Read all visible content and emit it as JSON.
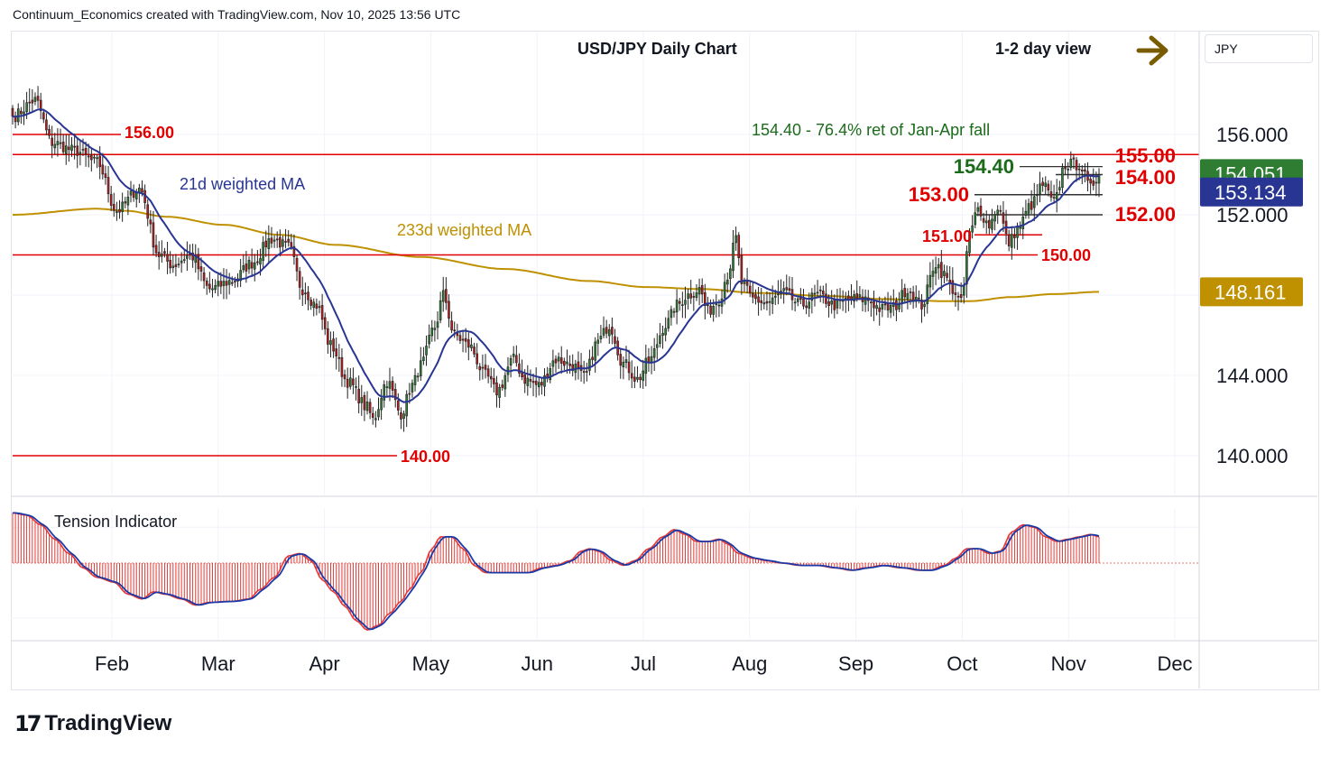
{
  "header": {
    "attribution": "Continuum_Economics created with TradingView.com, Nov 10, 2025 13:56 UTC"
  },
  "symbol_box": {
    "label": "JPY"
  },
  "branding": {
    "logo_mark": "17",
    "name": "TradingView"
  },
  "arrow_icon": "right-arrow-icon",
  "colors": {
    "up": "#2e7d32",
    "down": "#b71c1c",
    "ma21": "#283593",
    "ma233": "#bf9000",
    "level_line": "#e00000",
    "level_text": "#e00000",
    "fib_text": "#1b6b1b",
    "ma21_badge": "#283593",
    "ma233_badge": "#bf9000",
    "last_badge": "#2e7d32",
    "tension_fill": "#e53935",
    "tension_line": "#1a3aa8"
  },
  "chart_data": [
    {
      "type": "candlestick",
      "title": "USD/JPY Daily Chart",
      "subtitle": "1-2 day view",
      "y_axis": {
        "ticks": [
          156.0,
          144.0,
          140.0
        ],
        "tick_labels": [
          "156.000",
          "144.000",
          "140.000"
        ],
        "ylim": [
          138.0,
          157.9
        ]
      },
      "x_axis": {
        "tick_labels": [
          "Feb",
          "Mar",
          "Apr",
          "May",
          "Jun",
          "Jul",
          "Aug",
          "Sep",
          "Oct",
          "Nov",
          "Dec"
        ]
      },
      "price_badges": [
        {
          "label": "154.051",
          "kind": "last_price"
        },
        {
          "label": "153.134",
          "kind": "ma21"
        },
        {
          "label": "148.161",
          "kind": "ma233"
        }
      ],
      "levels": [
        {
          "value": 156.0,
          "label": "156.00"
        },
        {
          "value": 155.0,
          "label": "155.00"
        },
        {
          "value": 154.0,
          "label": "154.00"
        },
        {
          "value": 153.0,
          "label": "153.00"
        },
        {
          "value": 152.0,
          "label": "152.00"
        },
        {
          "value": 151.0,
          "label": "151.00"
        },
        {
          "value": 150.0,
          "label": "150.00"
        },
        {
          "value": 140.0,
          "label": "140.00"
        }
      ],
      "fib_level": {
        "value": 154.4,
        "label": "154.40",
        "note": "154.40 - 76.4% ret of Jan-Apr fall"
      },
      "series_labels": {
        "ma21": "21d weighted MA",
        "ma233": "233d weighted MA"
      },
      "close_anchors": [
        [
          0,
          156.9
        ],
        [
          8,
          157.7
        ],
        [
          14,
          155.6
        ],
        [
          22,
          155.2
        ],
        [
          30,
          154.6
        ],
        [
          37,
          152.2
        ],
        [
          45,
          153.3
        ],
        [
          52,
          150.0
        ],
        [
          57,
          149.5
        ],
        [
          63,
          150.0
        ],
        [
          70,
          148.3
        ],
        [
          78,
          148.7
        ],
        [
          85,
          149.6
        ],
        [
          92,
          150.8
        ],
        [
          98,
          150.4
        ],
        [
          103,
          148.3
        ],
        [
          108,
          147.5
        ],
        [
          113,
          145.5
        ],
        [
          119,
          143.7
        ],
        [
          126,
          142.4
        ],
        [
          128,
          141.8
        ],
        [
          133,
          143.7
        ],
        [
          138,
          142.1
        ],
        [
          142,
          143.5
        ],
        [
          145,
          144.5
        ],
        [
          150,
          146.4
        ],
        [
          153,
          148.0
        ],
        [
          157,
          146.0
        ],
        [
          162,
          145.5
        ],
        [
          168,
          144.0
        ],
        [
          172,
          143.2
        ],
        [
          178,
          144.8
        ],
        [
          182,
          143.8
        ],
        [
          187,
          143.5
        ],
        [
          193,
          144.8
        ],
        [
          199,
          144.5
        ],
        [
          203,
          143.9
        ],
        [
          208,
          145.7
        ],
        [
          212,
          146.5
        ],
        [
          217,
          144.6
        ],
        [
          222,
          143.8
        ],
        [
          226,
          144.7
        ],
        [
          232,
          146.5
        ],
        [
          236,
          147.5
        ],
        [
          240,
          148.0
        ],
        [
          244,
          148.3
        ],
        [
          247,
          147.2
        ],
        [
          251,
          147.8
        ],
        [
          254,
          149.0
        ],
        [
          257,
          150.8
        ],
        [
          259,
          148.6
        ],
        [
          263,
          147.8
        ],
        [
          268,
          147.6
        ],
        [
          274,
          148.1
        ],
        [
          280,
          147.5
        ],
        [
          286,
          148.0
        ],
        [
          292,
          147.5
        ],
        [
          298,
          147.8
        ],
        [
          303,
          147.8
        ],
        [
          309,
          147.3
        ],
        [
          313,
          147.4
        ],
        [
          318,
          148.3
        ],
        [
          323,
          147.5
        ],
        [
          328,
          149.6
        ],
        [
          331,
          149.0
        ],
        [
          334,
          148.3
        ],
        [
          337,
          147.6
        ],
        [
          340,
          151.0
        ],
        [
          343,
          152.3
        ],
        [
          347,
          151.5
        ],
        [
          350,
          152.4
        ],
        [
          354,
          150.6
        ],
        [
          357,
          151.3
        ],
        [
          362,
          152.5
        ],
        [
          366,
          153.5
        ],
        [
          370,
          152.6
        ],
        [
          374,
          154.5
        ],
        [
          379,
          154.5
        ],
        [
          383,
          153.3
        ],
        [
          384,
          153.6
        ],
        [
          386,
          154.0
        ]
      ],
      "ma233_anchors": [
        [
          0,
          152.0
        ],
        [
          30,
          152.3
        ],
        [
          40,
          152.2
        ],
        [
          55,
          151.9
        ],
        [
          75,
          151.5
        ],
        [
          95,
          151.0
        ],
        [
          115,
          150.5
        ],
        [
          145,
          149.9
        ],
        [
          175,
          149.3
        ],
        [
          205,
          148.7
        ],
        [
          225,
          148.4
        ],
        [
          245,
          148.3
        ],
        [
          265,
          148.1
        ],
        [
          290,
          147.95
        ],
        [
          310,
          147.8
        ],
        [
          330,
          147.7
        ],
        [
          340,
          147.7
        ],
        [
          355,
          147.9
        ],
        [
          370,
          148.05
        ],
        [
          386,
          148.16
        ]
      ],
      "x_range": [
        0,
        386
      ]
    },
    {
      "type": "histogram_line",
      "title": "Tension Indicator",
      "anchors": [
        [
          0,
          1.05
        ],
        [
          5,
          1.0
        ],
        [
          10,
          0.8
        ],
        [
          15,
          0.5
        ],
        [
          20,
          0.2
        ],
        [
          25,
          -0.1
        ],
        [
          30,
          -0.3
        ],
        [
          36,
          -0.4
        ],
        [
          41,
          -0.65
        ],
        [
          46,
          -0.75
        ],
        [
          50,
          -0.6
        ],
        [
          54,
          -0.65
        ],
        [
          60,
          -0.75
        ],
        [
          65,
          -0.88
        ],
        [
          70,
          -0.82
        ],
        [
          78,
          -0.8
        ],
        [
          84,
          -0.75
        ],
        [
          88,
          -0.55
        ],
        [
          93,
          -0.3
        ],
        [
          98,
          0.15
        ],
        [
          102,
          0.2
        ],
        [
          106,
          0.05
        ],
        [
          110,
          -0.35
        ],
        [
          114,
          -0.6
        ],
        [
          118,
          -0.9
        ],
        [
          122,
          -1.2
        ],
        [
          126,
          -1.4
        ],
        [
          130,
          -1.3
        ],
        [
          134,
          -1.05
        ],
        [
          138,
          -0.8
        ],
        [
          141,
          -0.55
        ],
        [
          145,
          -0.2
        ],
        [
          149,
          0.3
        ],
        [
          152,
          0.55
        ],
        [
          156,
          0.55
        ],
        [
          160,
          0.3
        ],
        [
          164,
          -0.05
        ],
        [
          168,
          -0.2
        ],
        [
          173,
          -0.2
        ],
        [
          178,
          -0.2
        ],
        [
          183,
          -0.2
        ],
        [
          188,
          -0.1
        ],
        [
          193,
          -0.05
        ],
        [
          198,
          0.05
        ],
        [
          202,
          0.25
        ],
        [
          205,
          0.3
        ],
        [
          208,
          0.25
        ],
        [
          213,
          0.05
        ],
        [
          217,
          -0.05
        ],
        [
          221,
          0.05
        ],
        [
          226,
          0.3
        ],
        [
          231,
          0.55
        ],
        [
          235,
          0.7
        ],
        [
          239,
          0.6
        ],
        [
          243,
          0.45
        ],
        [
          247,
          0.45
        ],
        [
          251,
          0.5
        ],
        [
          254,
          0.4
        ],
        [
          258,
          0.2
        ],
        [
          263,
          0.1
        ],
        [
          268,
          0.05
        ],
        [
          273,
          0.0
        ],
        [
          280,
          -0.05
        ],
        [
          286,
          -0.05
        ],
        [
          292,
          -0.1
        ],
        [
          298,
          -0.15
        ],
        [
          303,
          -0.1
        ],
        [
          309,
          -0.05
        ],
        [
          316,
          -0.1
        ],
        [
          322,
          -0.15
        ],
        [
          326,
          -0.15
        ],
        [
          331,
          -0.05
        ],
        [
          335,
          0.1
        ],
        [
          339,
          0.3
        ],
        [
          343,
          0.3
        ],
        [
          347,
          0.2
        ],
        [
          351,
          0.25
        ],
        [
          355,
          0.65
        ],
        [
          359,
          0.8
        ],
        [
          363,
          0.75
        ],
        [
          367,
          0.55
        ],
        [
          371,
          0.45
        ],
        [
          375,
          0.5
        ],
        [
          379,
          0.55
        ],
        [
          383,
          0.6
        ],
        [
          386,
          0.55
        ]
      ],
      "ylim": [
        -1.55,
        1.2
      ]
    }
  ]
}
